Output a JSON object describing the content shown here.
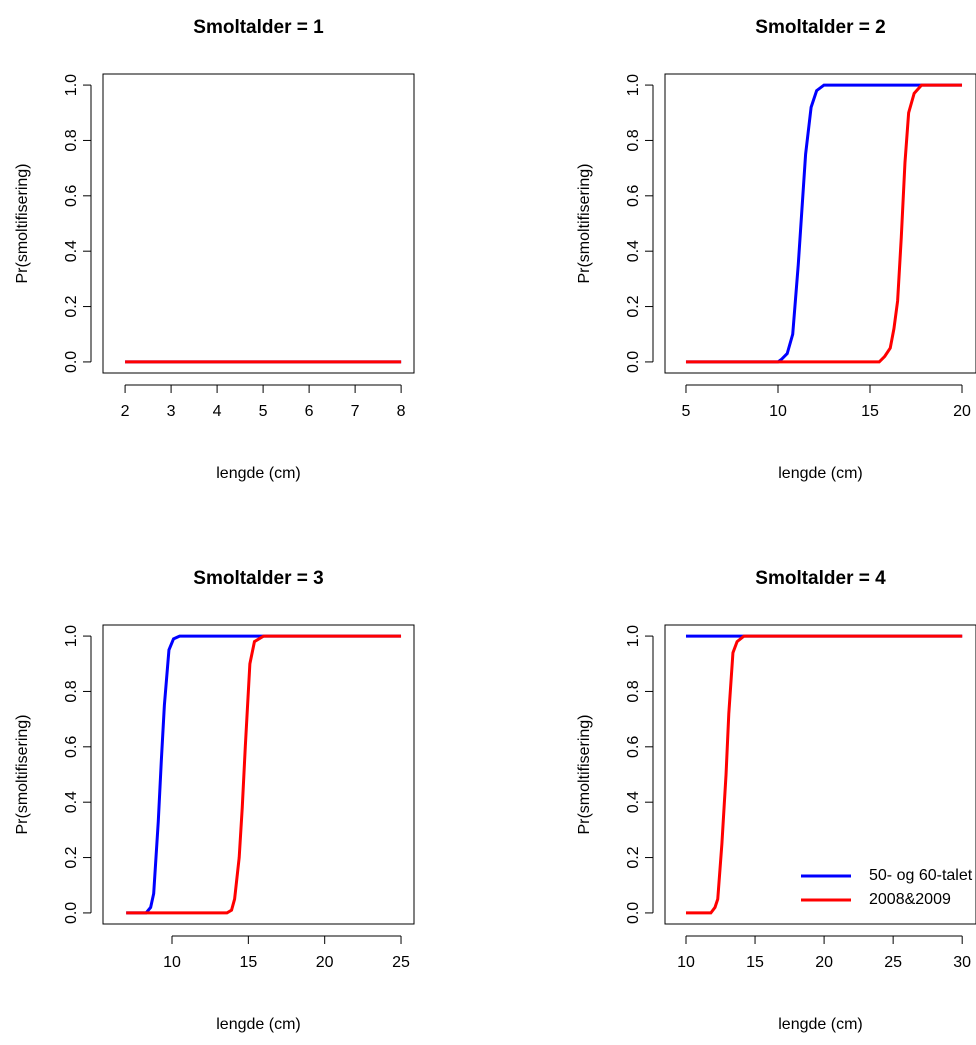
{
  "chart_data": [
    {
      "type": "line",
      "title": "Smoltalder = 1",
      "xlabel": "lengde (cm)",
      "ylabel": "Pr(smoltifisering)",
      "xlim": [
        1.52,
        8.28
      ],
      "ylim": [
        -0.04,
        1.04
      ],
      "xticks": [
        2,
        3,
        4,
        5,
        6,
        7,
        8
      ],
      "yticks": [
        {
          "value": 0,
          "label": "0.0"
        },
        0.2,
        0.4,
        0.6,
        0.8,
        {
          "value": 1,
          "label": "1.0"
        }
      ],
      "series": [
        {
          "color": "#0000ff",
          "x": [
            2,
            8
          ],
          "values": [
            0,
            0
          ]
        },
        {
          "color": "#ff0000",
          "x": [
            2,
            8
          ],
          "values": [
            0,
            0
          ]
        }
      ]
    },
    {
      "type": "line",
      "title": "Smoltalder = 2",
      "xlabel": "lengde (cm)",
      "ylabel": "Pr(smoltifisering)",
      "xlim": [
        3.86,
        20.76
      ],
      "ylim": [
        -0.04,
        1.04
      ],
      "xticks": [
        5,
        10,
        15,
        20
      ],
      "yticks": [
        {
          "value": 0,
          "label": "0.0"
        },
        0.2,
        0.4,
        0.6,
        0.8,
        {
          "value": 1,
          "label": "1.0"
        }
      ],
      "series": [
        {
          "color": "#0000ff",
          "x": [
            5,
            10,
            10.2,
            10.5,
            10.8,
            11.1,
            11.3,
            11.5,
            11.8,
            12.1,
            12.5,
            20
          ],
          "values": [
            0,
            0,
            0.01,
            0.03,
            0.1,
            0.35,
            0.55,
            0.75,
            0.92,
            0.98,
            1,
            1
          ]
        },
        {
          "color": "#ff0000",
          "x": [
            5,
            15.5,
            15.8,
            16.1,
            16.3,
            16.5,
            16.7,
            16.9,
            17.1,
            17.4,
            17.8,
            20
          ],
          "values": [
            0,
            0,
            0.02,
            0.05,
            0.12,
            0.22,
            0.45,
            0.72,
            0.9,
            0.97,
            1,
            1
          ]
        }
      ]
    },
    {
      "type": "line",
      "title": "Smoltalder = 3",
      "xlabel": "lengde (cm)",
      "ylabel": "Pr(smoltifisering)",
      "xlim": [
        5.48,
        25.85
      ],
      "ylim": [
        -0.04,
        1.04
      ],
      "xticks": [
        10,
        15,
        20,
        25
      ],
      "yticks": [
        {
          "value": 0,
          "label": "0.0"
        },
        0.2,
        0.4,
        0.6,
        0.8,
        {
          "value": 1,
          "label": "1.0"
        }
      ],
      "series": [
        {
          "color": "#0000ff",
          "x": [
            7,
            8.3,
            8.6,
            8.8,
            9.1,
            9.3,
            9.5,
            9.8,
            10.1,
            10.5,
            25
          ],
          "values": [
            0,
            0,
            0.02,
            0.07,
            0.33,
            0.55,
            0.75,
            0.95,
            0.99,
            1,
            1
          ]
        },
        {
          "color": "#ff0000",
          "x": [
            7,
            13.6,
            13.9,
            14.1,
            14.4,
            14.6,
            14.8,
            15.1,
            15.4,
            16,
            25
          ],
          "values": [
            0,
            0,
            0.01,
            0.05,
            0.2,
            0.38,
            0.6,
            0.9,
            0.98,
            1,
            1
          ]
        }
      ]
    },
    {
      "type": "line",
      "title": "Smoltalder = 4",
      "xlabel": "lengde (cm)",
      "ylabel": "Pr(smoltifisering)",
      "xlim": [
        8.48,
        31
      ],
      "ylim": [
        -0.04,
        1.04
      ],
      "xticks": [
        10,
        15,
        20,
        25,
        30
      ],
      "yticks": [
        {
          "value": 0,
          "label": "0.0"
        },
        0.2,
        0.4,
        0.6,
        0.8,
        {
          "value": 1,
          "label": "1.0"
        }
      ],
      "legend": "bottomright",
      "series": [
        {
          "name": "50- og 60-talet",
          "color": "#0000ff",
          "x": [
            10,
            30
          ],
          "values": [
            1,
            1
          ]
        },
        {
          "name": "2008&2009",
          "color": "#ff0000",
          "x": [
            10,
            11.8,
            12.1,
            12.3,
            12.6,
            12.9,
            13.1,
            13.4,
            13.7,
            14.2,
            30
          ],
          "values": [
            0,
            0,
            0.02,
            0.05,
            0.25,
            0.5,
            0.72,
            0.94,
            0.98,
            1,
            1
          ]
        }
      ]
    }
  ]
}
